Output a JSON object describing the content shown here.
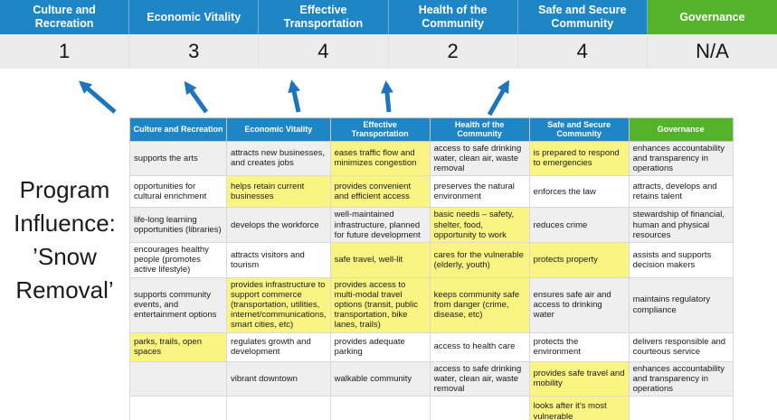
{
  "title": "Program Influence: ’Snow Removal’",
  "colors": {
    "header_blue": "#1f86c6",
    "header_green": "#55b22b",
    "highlight_yellow": "#faf582",
    "arrow_blue": "#1d76bd",
    "score_row_gray": "#ececec",
    "band_gray": "#efefef"
  },
  "scorecard": {
    "columns": [
      {
        "label": "Culture and Recreation",
        "score": "1",
        "theme": "blue"
      },
      {
        "label": "Economic Vitality",
        "score": "3",
        "theme": "blue"
      },
      {
        "label": "Effective Transportation",
        "score": "4",
        "theme": "blue"
      },
      {
        "label": "Health of the Community",
        "score": "2",
        "theme": "blue"
      },
      {
        "label": "Safe and Secure Community",
        "score": "4",
        "theme": "blue"
      },
      {
        "label": "Governance",
        "score": "N/A",
        "theme": "green"
      }
    ]
  },
  "matrix": {
    "headers": [
      {
        "label": "Culture and Recreation",
        "theme": "blue"
      },
      {
        "label": "Economic Vitality",
        "theme": "blue"
      },
      {
        "label": "Effective Transportation",
        "theme": "blue"
      },
      {
        "label": "Health of the Community",
        "theme": "blue"
      },
      {
        "label": "Safe and Secure Community",
        "theme": "blue"
      },
      {
        "label": "Governance",
        "theme": "green"
      }
    ],
    "rows": [
      [
        {
          "text": "supports the arts",
          "highlight": false
        },
        {
          "text": "attracts new businesses, and creates jobs",
          "highlight": false
        },
        {
          "text": "eases traffic flow and minimizes congestion",
          "highlight": true
        },
        {
          "text": "access to safe drinking water, clean air, waste removal",
          "highlight": false
        },
        {
          "text": "is prepared to respond to emergencies",
          "highlight": true
        },
        {
          "text": "enhances accountability and transparency in operations",
          "highlight": false
        }
      ],
      [
        {
          "text": "opportunities for cultural enrichment",
          "highlight": false
        },
        {
          "text": "helps retain current businesses",
          "highlight": true
        },
        {
          "text": "provides convenient and efficient access",
          "highlight": true
        },
        {
          "text": "preserves the natural environment",
          "highlight": false
        },
        {
          "text": "enforces the law",
          "highlight": false
        },
        {
          "text": "attracts, develops and retains talent",
          "highlight": false
        }
      ],
      [
        {
          "text": "life-long learning opportunities (libraries)",
          "highlight": false
        },
        {
          "text": "develops the workforce",
          "highlight": false
        },
        {
          "text": "well-maintained infrastructure, planned for future development",
          "highlight": false
        },
        {
          "text": "basic needs – safety, shelter, food, opportunity to work",
          "highlight": true
        },
        {
          "text": "reduces crime",
          "highlight": false
        },
        {
          "text": "stewardship of financial, human and physical resources",
          "highlight": false
        }
      ],
      [
        {
          "text": "encourages healthy people (promotes active lifestyle)",
          "highlight": false
        },
        {
          "text": "attracts visitors and tourism",
          "highlight": false
        },
        {
          "text": "safe travel, well-lit",
          "highlight": true
        },
        {
          "text": "cares for the vulnerable (elderly, youth)",
          "highlight": true
        },
        {
          "text": "protects property",
          "highlight": true
        },
        {
          "text": "assists and supports decision makers",
          "highlight": false
        }
      ],
      [
        {
          "text": "supports community events, and entertainment options",
          "highlight": false
        },
        {
          "text": "provides infrastructure to support commerce (transportation, utilities, internet/communications, smart cities, etc)",
          "highlight": true
        },
        {
          "text": "provides access to multi-modal travel options (transit, public transportation, bike lanes, trails)",
          "highlight": true
        },
        {
          "text": "keeps community safe from danger (crime, disease, etc)",
          "highlight": true
        },
        {
          "text": "ensures safe air and access to drinking water",
          "highlight": false
        },
        {
          "text": "maintains regulatory compliance",
          "highlight": false
        }
      ],
      [
        {
          "text": "parks, trails, open spaces",
          "highlight": true
        },
        {
          "text": "regulates growth and development",
          "highlight": false
        },
        {
          "text": "provides adequate parking",
          "highlight": false
        },
        {
          "text": "access to health care",
          "highlight": false
        },
        {
          "text": "protects the environment",
          "highlight": false
        },
        {
          "text": "delivers responsible and courteous service",
          "highlight": false
        }
      ],
      [
        {
          "text": "",
          "highlight": false
        },
        {
          "text": "vibrant downtown",
          "highlight": false
        },
        {
          "text": "walkable community",
          "highlight": false
        },
        {
          "text": "access to safe drinking water, clean air, waste removal",
          "highlight": false
        },
        {
          "text": "provides safe travel and mobility",
          "highlight": true
        },
        {
          "text": "enhances accountability and transparency in operations",
          "highlight": false
        }
      ],
      [
        {
          "text": "",
          "highlight": false
        },
        {
          "text": "",
          "highlight": false
        },
        {
          "text": "",
          "highlight": false
        },
        {
          "text": "",
          "highlight": false
        },
        {
          "text": "looks after it's most vulnerable",
          "highlight": true
        },
        {
          "text": "",
          "highlight": false
        }
      ]
    ]
  }
}
